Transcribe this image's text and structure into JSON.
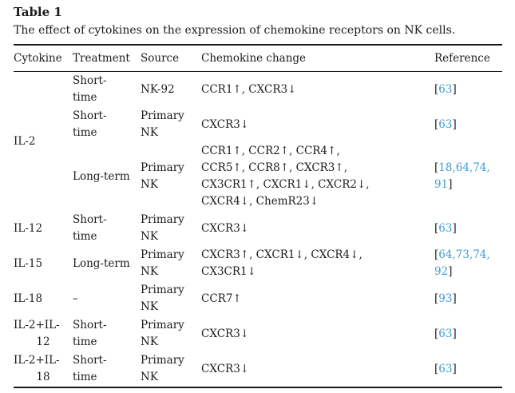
{
  "title": "Table 1",
  "caption": "The effect of cytokines on the expression of chemokine receptors on NK cells.",
  "link_color": "#3d9cd6",
  "columns": [
    "Cytokine",
    "Treatment",
    "Source",
    "Chemokine change",
    "Reference"
  ],
  "rows": [
    {
      "cytokine": "IL-2",
      "cytokine_rowspan": 3,
      "treatment": "Short-\ntime",
      "source": "NK-92",
      "change": "CCR1↑, CXCR3↓",
      "ref": {
        "open": "[",
        "links": "63",
        "close": "]"
      }
    },
    {
      "treatment": "Short-\ntime",
      "source": "Primary\nNK",
      "change": "CXCR3↓",
      "ref": {
        "open": "[",
        "links": "63",
        "close": "]"
      }
    },
    {
      "treatment": "Long-term",
      "source": "Primary\nNK",
      "change": "CCR1↑, CCR2↑, CCR4↑,\nCCR5↑, CCR8↑, CXCR3↑,\nCX3CR1↑, CXCR1↓, CXCR2↓,\nCXCR4↓, ChemR23↓",
      "ref": {
        "open": "[",
        "links": "18,64,74,\n91",
        "close": "]"
      }
    },
    {
      "cytokine": "IL-12",
      "treatment": "Short-\ntime",
      "source": "Primary\nNK",
      "change": "CXCR3↓",
      "ref": {
        "open": "[",
        "links": "63",
        "close": "]"
      }
    },
    {
      "cytokine": "IL-15",
      "treatment": "Long-term",
      "source": "Primary\nNK",
      "change": "CXCR3↑, CXCR1↓, CXCR4↓,\nCX3CR1↓",
      "ref": {
        "open": "[",
        "links": "64,73,74,\n92",
        "close": "]"
      }
    },
    {
      "cytokine": "IL-18",
      "treatment": "–",
      "source": "Primary\nNK",
      "change": "CCR7↑",
      "ref": {
        "open": "[",
        "links": "93",
        "close": "]"
      }
    },
    {
      "cytokine": "IL-2+IL-\n12",
      "treatment": "Short-\ntime",
      "source": "Primary\nNK",
      "change": "CXCR3↓",
      "ref": {
        "open": "[",
        "links": "63",
        "close": "]"
      }
    },
    {
      "cytokine": "IL-2+IL-\n18",
      "treatment": "Short-\ntime",
      "source": "Primary\nNK",
      "change": "CXCR3↓",
      "ref": {
        "open": "[",
        "links": "63",
        "close": "]"
      }
    }
  ]
}
